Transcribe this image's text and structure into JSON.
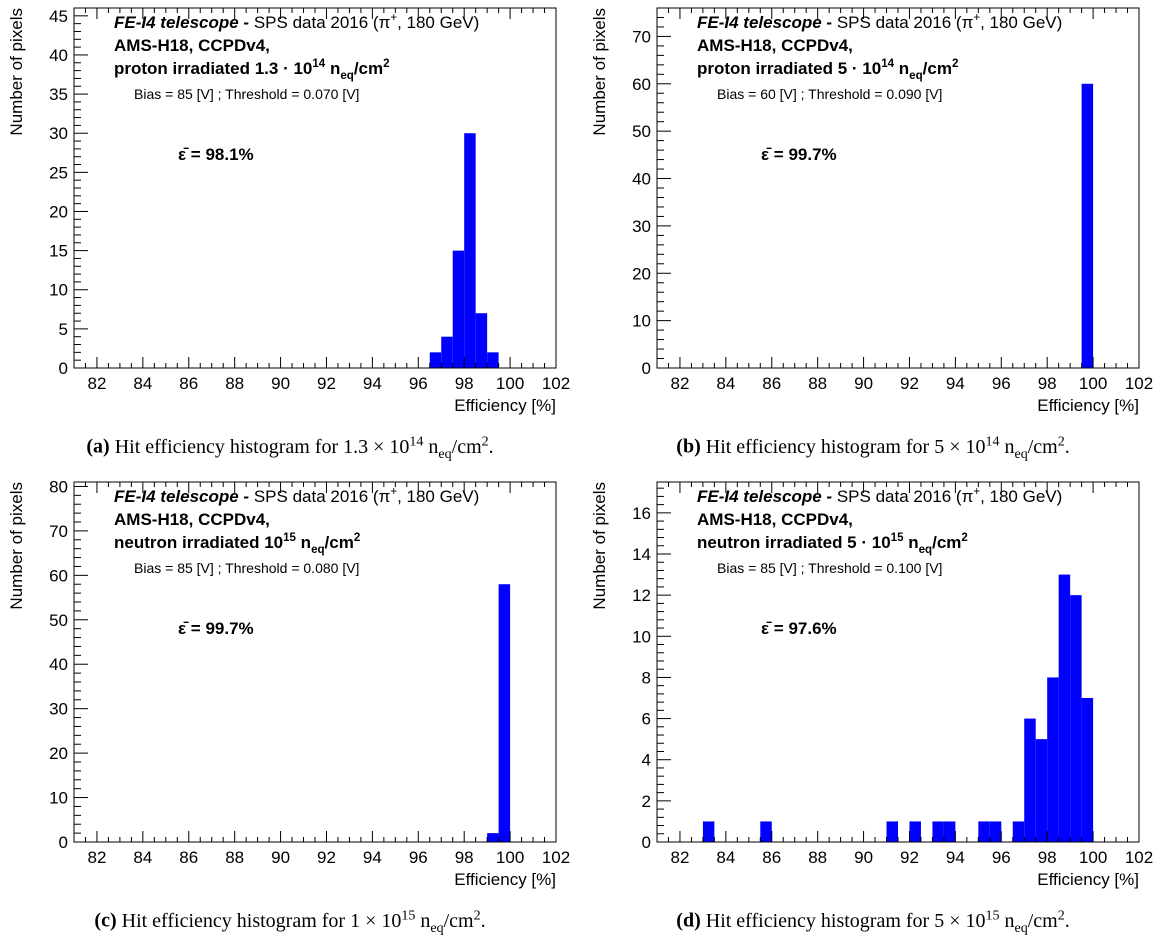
{
  "chart_data": [
    {
      "id": "a",
      "type": "bar",
      "xlabel": "Efficiency [%]",
      "ylabel": "Number of pixels",
      "xlim": [
        81,
        102
      ],
      "ylim": [
        0,
        46
      ],
      "xticks": [
        82,
        84,
        86,
        88,
        90,
        92,
        94,
        96,
        98,
        100,
        102
      ],
      "yticks": [
        0,
        5,
        10,
        15,
        20,
        25,
        30,
        35,
        40,
        45
      ],
      "bin_width": 0.5,
      "bins": [
        {
          "x0": 96.5,
          "y": 2
        },
        {
          "x0": 97.0,
          "y": 4
        },
        {
          "x0": 97.5,
          "y": 15
        },
        {
          "x0": 98.0,
          "y": 30
        },
        {
          "x0": 98.5,
          "y": 7
        },
        {
          "x0": 99.0,
          "y": 2
        }
      ],
      "legend": {
        "telescope": "FE-I4 telescope -",
        "run": "SPS data 2016 (π⁺, 180 GeV)",
        "device": "AMS-H18, CCPDv4,",
        "irradiation": "proton irradiated 1.3",
        "fluence": "· 10¹⁴ n_eq/cm²",
        "settings": "Bias = 85 [V] ; Threshold = 0.070 [V]",
        "mean": "ε̄ = 98.1%"
      },
      "caption": {
        "label": "(a)",
        "text": "Hit efficiency histogram for 1.3 × 10¹⁴ n_eq/cm²."
      }
    },
    {
      "id": "b",
      "type": "bar",
      "xlabel": "Efficiency [%]",
      "ylabel": "Number of pixels",
      "xlim": [
        81,
        102
      ],
      "ylim": [
        0,
        76
      ],
      "xticks": [
        82,
        84,
        86,
        88,
        90,
        92,
        94,
        96,
        98,
        100,
        102
      ],
      "yticks": [
        0,
        10,
        20,
        30,
        40,
        50,
        60,
        70
      ],
      "bin_width": 0.5,
      "bins": [
        {
          "x0": 99.5,
          "y": 60
        }
      ],
      "legend": {
        "telescope": "FE-I4 telescope -",
        "run": "SPS data 2016 (π⁺, 180 GeV)",
        "device": "AMS-H18, CCPDv4,",
        "irradiation": "proton irradiated 5",
        "fluence": "· 10¹⁴ n_eq/cm²",
        "settings": "Bias = 60 [V] ; Threshold = 0.090 [V]",
        "mean": "ε̄ = 99.7%"
      },
      "caption": {
        "label": "(b)",
        "text": "Hit efficiency histogram for 5 × 10¹⁴ n_eq/cm²."
      }
    },
    {
      "id": "c",
      "type": "bar",
      "xlabel": "Efficiency [%]",
      "ylabel": "Number of pixels",
      "xlim": [
        81,
        102
      ],
      "ylim": [
        0,
        81
      ],
      "xticks": [
        82,
        84,
        86,
        88,
        90,
        92,
        94,
        96,
        98,
        100,
        102
      ],
      "yticks": [
        0,
        10,
        20,
        30,
        40,
        50,
        60,
        70,
        80
      ],
      "bin_width": 0.5,
      "bins": [
        {
          "x0": 99.0,
          "y": 2
        },
        {
          "x0": 99.5,
          "y": 58
        }
      ],
      "legend": {
        "telescope": "FE-I4 telescope -",
        "run": "SPS data 2016 (π⁺, 180 GeV)",
        "device": "AMS-H18, CCPDv4,",
        "irradiation": "neutron irradiated",
        "fluence": "10¹⁵ n_eq/cm²",
        "settings": "Bias = 85 [V] ; Threshold = 0.080 [V]",
        "mean": "ε̄ = 99.7%"
      },
      "caption": {
        "label": "(c)",
        "text": "Hit efficiency histogram for 1 × 10¹⁵ n_eq/cm²."
      }
    },
    {
      "id": "d",
      "type": "bar",
      "xlabel": "Efficiency [%]",
      "ylabel": "Number of pixels",
      "xlim": [
        81,
        102
      ],
      "ylim": [
        0,
        17.5
      ],
      "xticks": [
        82,
        84,
        86,
        88,
        90,
        92,
        94,
        96,
        98,
        100,
        102
      ],
      "yticks": [
        0,
        2,
        4,
        6,
        8,
        10,
        12,
        14,
        16
      ],
      "bin_width": 0.5,
      "bins": [
        {
          "x0": 83.0,
          "y": 1
        },
        {
          "x0": 85.5,
          "y": 1
        },
        {
          "x0": 91.0,
          "y": 1
        },
        {
          "x0": 92.0,
          "y": 1
        },
        {
          "x0": 93.0,
          "y": 1
        },
        {
          "x0": 93.5,
          "y": 1
        },
        {
          "x0": 95.0,
          "y": 1
        },
        {
          "x0": 95.5,
          "y": 1
        },
        {
          "x0": 96.5,
          "y": 1
        },
        {
          "x0": 97.0,
          "y": 6
        },
        {
          "x0": 97.5,
          "y": 5
        },
        {
          "x0": 98.0,
          "y": 8
        },
        {
          "x0": 98.5,
          "y": 13
        },
        {
          "x0": 99.0,
          "y": 12
        },
        {
          "x0": 99.5,
          "y": 7
        }
      ],
      "legend": {
        "telescope": "FE-I4 telescope -",
        "run": "SPS data 2016 (π⁺, 180 GeV)",
        "device": "AMS-H18, CCPDv4,",
        "irradiation": "neutron irradiated 5",
        "fluence": "· 10¹⁵ n_eq/cm²",
        "settings": "Bias = 85 [V] ; Threshold = 0.100 [V]",
        "mean": "ε̄ = 97.6%"
      },
      "caption": {
        "label": "(d)",
        "text": "Hit efficiency histogram for 5 × 10¹⁵ n_eq/cm²."
      }
    }
  ],
  "colors": {
    "bar": "#0000ff",
    "axis": "#000000",
    "background": "#ffffff"
  }
}
